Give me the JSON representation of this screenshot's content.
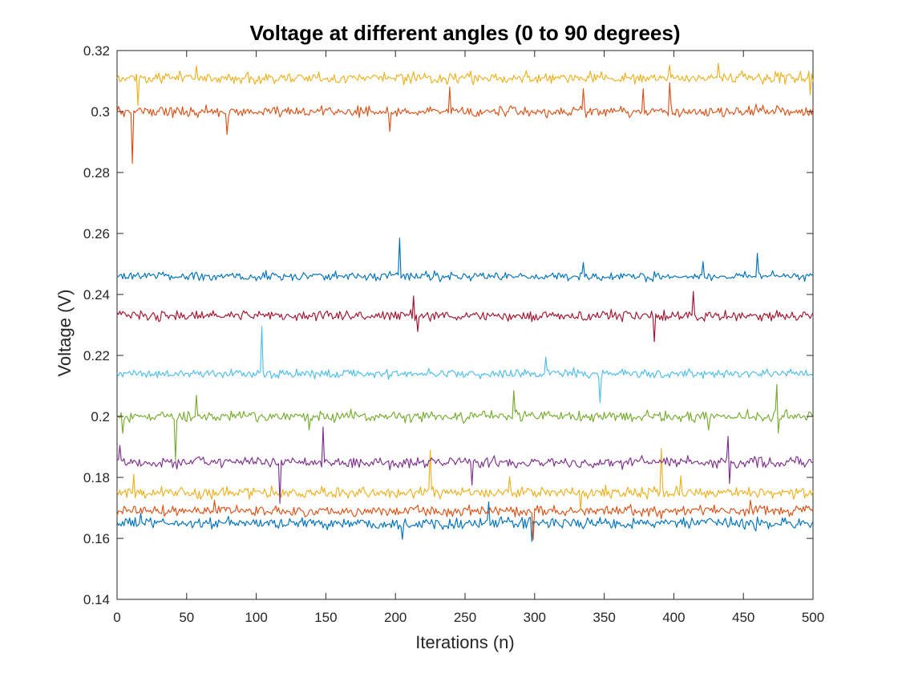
{
  "chart_data": {
    "type": "line",
    "title": "Voltage at different angles (0 to 90 degrees)",
    "xlabel": "Iterations (n)",
    "ylabel": "Voltage (V)",
    "xlim": [
      0,
      500
    ],
    "ylim": [
      0.14,
      0.32
    ],
    "xticks": [
      0,
      50,
      100,
      150,
      200,
      250,
      300,
      350,
      400,
      450,
      500
    ],
    "yticks": [
      0.14,
      0.16,
      0.18,
      0.2,
      0.22,
      0.24,
      0.26,
      0.28,
      0.3,
      0.32
    ],
    "xtick_labels": [
      "0",
      "50",
      "100",
      "150",
      "200",
      "250",
      "300",
      "350",
      "400",
      "450",
      "500"
    ],
    "ytick_labels": [
      "0.14",
      "0.16",
      "0.18",
      "0.2",
      "0.22",
      "0.24",
      "0.26",
      "0.28",
      "0.3",
      "0.32"
    ],
    "grid": false,
    "n_points": 501,
    "series": [
      {
        "color": "#0072BD",
        "mean": 0.165,
        "noise": 0.0011,
        "spikes": [
          [
            17,
            0.1682
          ],
          [
            205,
            0.1597
          ],
          [
            267,
            0.172
          ],
          [
            298,
            0.159
          ],
          [
            459,
            0.1625
          ]
        ]
      },
      {
        "color": "#D95319",
        "mean": 0.169,
        "noise": 0.0011,
        "spikes": [
          [
            70,
            0.1725
          ],
          [
            299,
            0.1595
          ],
          [
            391,
            0.1664
          ],
          [
            455,
            0.1725
          ]
        ]
      },
      {
        "color": "#EDB120",
        "mean": 0.175,
        "noise": 0.0011,
        "spikes": [
          [
            12,
            0.181
          ],
          [
            225,
            0.189
          ],
          [
            282,
            0.1802
          ],
          [
            333,
            0.1695
          ],
          [
            391,
            0.1895
          ],
          [
            405,
            0.1805
          ]
        ]
      },
      {
        "color": "#7E2F8E",
        "mean": 0.185,
        "noise": 0.0011,
        "spikes": [
          [
            2,
            0.1905
          ],
          [
            117,
            0.1715
          ],
          [
            148,
            0.1965
          ],
          [
            255,
            0.1775
          ],
          [
            439,
            0.1935
          ],
          [
            440,
            0.178
          ]
        ]
      },
      {
        "color": "#77AC30",
        "mean": 0.2,
        "noise": 0.0011,
        "spikes": [
          [
            4,
            0.1945
          ],
          [
            42,
            0.1855
          ],
          [
            57,
            0.207
          ],
          [
            138,
            0.1955
          ],
          [
            285,
            0.2085
          ],
          [
            425,
            0.1955
          ],
          [
            474,
            0.2105
          ],
          [
            475,
            0.1945
          ]
        ]
      },
      {
        "color": "#4DBEEE",
        "mean": 0.214,
        "noise": 0.0009,
        "spikes": [
          [
            104,
            0.2295
          ],
          [
            308,
            0.2195
          ],
          [
            347,
            0.2045
          ]
        ]
      },
      {
        "color": "#A2142F",
        "mean": 0.233,
        "noise": 0.0011,
        "spikes": [
          [
            213,
            0.2395
          ],
          [
            216,
            0.2278
          ],
          [
            386,
            0.2245
          ],
          [
            414,
            0.241
          ]
        ]
      },
      {
        "color": "#0072BD",
        "mean": 0.246,
        "noise": 0.0009,
        "spikes": [
          [
            203,
            0.2585
          ],
          [
            335,
            0.2505
          ],
          [
            421,
            0.2508
          ],
          [
            460,
            0.2535
          ]
        ]
      },
      {
        "color": "#D95319",
        "mean": 0.3,
        "noise": 0.0011,
        "spikes": [
          [
            11,
            0.283
          ],
          [
            79,
            0.2925
          ],
          [
            196,
            0.2935
          ],
          [
            239,
            0.308
          ],
          [
            335,
            0.3075
          ],
          [
            378,
            0.3075
          ],
          [
            397,
            0.3095
          ]
        ]
      },
      {
        "color": "#EDB120",
        "mean": 0.311,
        "noise": 0.0011,
        "spikes": [
          [
            15,
            0.302
          ],
          [
            57,
            0.315
          ],
          [
            397,
            0.3152
          ],
          [
            432,
            0.3158
          ],
          [
            498,
            0.3055
          ]
        ]
      }
    ]
  }
}
